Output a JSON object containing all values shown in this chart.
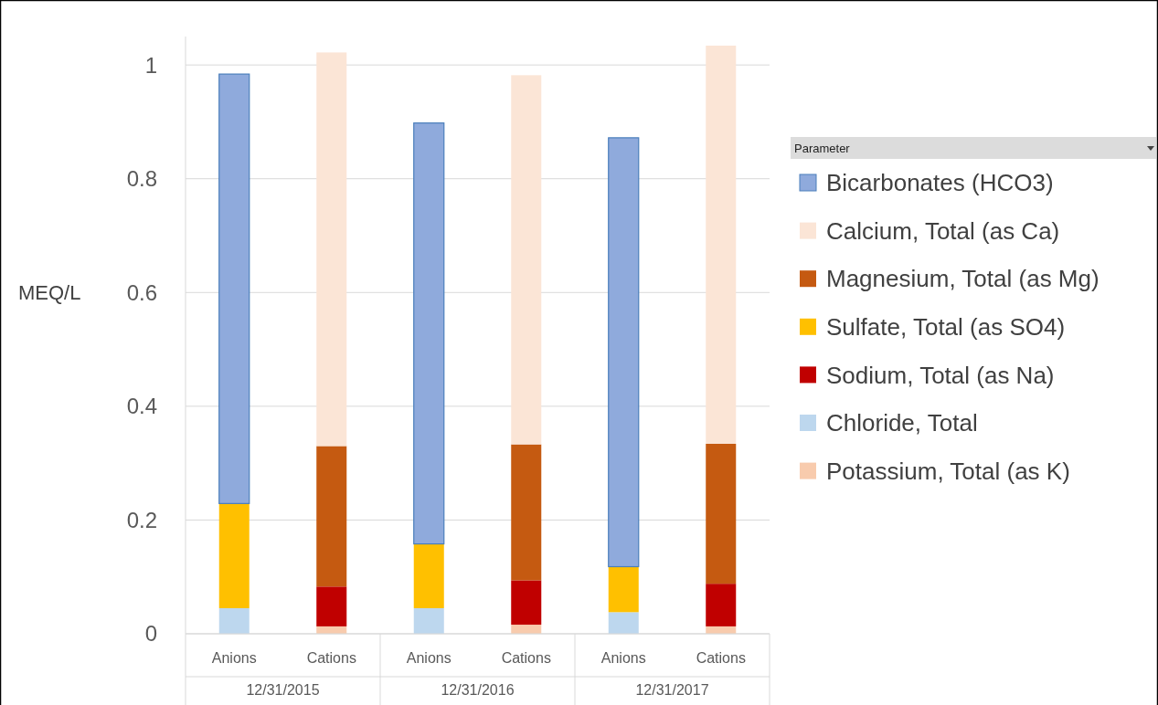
{
  "chart_data": {
    "type": "bar",
    "stacked": true,
    "ylabel": "MEQ/L",
    "legend_title": "Parameter",
    "legend": "right",
    "grid": "y",
    "categories": [
      "Anions",
      "Cations",
      "Anions",
      "Cations",
      "Anions",
      "Cations"
    ],
    "annotations": [
      "12/31/2015",
      "12/31/2016",
      "12/31/2017"
    ],
    "ylim": [
      0,
      1.05
    ],
    "yticks": [
      0,
      0.2,
      0.4,
      0.6,
      0.8,
      1
    ],
    "series": [
      {
        "name": "Potassium, Total (as K)",
        "color": "#f8cbad",
        "values": [
          null,
          0.013,
          null,
          0.016,
          null,
          0.013
        ]
      },
      {
        "name": "Chloride, Total",
        "color": "#bdd7ee",
        "values": [
          0.045,
          null,
          0.045,
          null,
          0.038,
          null
        ]
      },
      {
        "name": "Sodium, Total (as Na)",
        "color": "#c00000",
        "values": [
          null,
          0.07,
          null,
          0.078,
          null,
          0.075
        ]
      },
      {
        "name": "Sulfate, Total (as SO4)",
        "color": "#ffc000",
        "values": [
          0.184,
          null,
          0.113,
          null,
          0.08,
          null
        ]
      },
      {
        "name": "Magnesium, Total (as Mg)",
        "color": "#c55a11",
        "values": [
          null,
          0.247,
          null,
          0.239,
          null,
          0.246
        ]
      },
      {
        "name": "Calcium, Total (as Ca)",
        "color": "#fbe5d6",
        "values": [
          null,
          0.692,
          null,
          0.649,
          null,
          0.7
        ]
      },
      {
        "name": "Bicarbonates (HCO3)",
        "color": "#8faadc",
        "values": [
          0.755,
          null,
          0.74,
          null,
          0.754,
          null
        ]
      }
    ]
  }
}
